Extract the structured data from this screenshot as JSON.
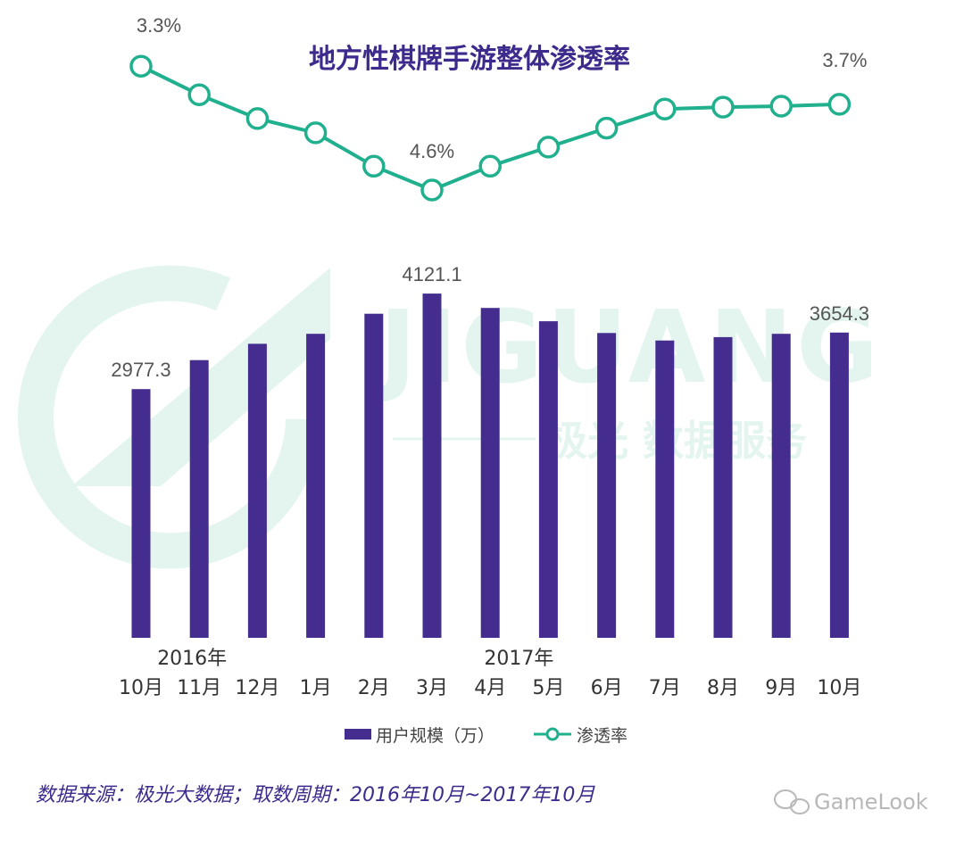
{
  "chart_data": {
    "type": "bar+line",
    "title": "地方性棋牌手游整体渗透率",
    "categories": [
      "10月",
      "11月",
      "12月",
      "1月",
      "2月",
      "3月",
      "4月",
      "5月",
      "6月",
      "7月",
      "8月",
      "9月",
      "10月"
    ],
    "year_labels": [
      {
        "text": "2016年",
        "category_index": 1
      },
      {
        "text": "2017年",
        "category_index": 7
      }
    ],
    "series": [
      {
        "name": "用户规模（万）",
        "type": "bar",
        "color": "#452d8f",
        "values": [
          2977.3,
          3325,
          3520,
          3640,
          3880,
          4121.1,
          3950,
          3790,
          3650,
          3560,
          3600,
          3640,
          3654.3
        ]
      },
      {
        "name": "渗透率",
        "type": "line",
        "color": "#20b08e",
        "unit": "%",
        "values": [
          3.3,
          3.6,
          3.85,
          4.0,
          4.35,
          4.6,
          4.35,
          4.15,
          3.95,
          3.75,
          3.73,
          3.72,
          3.7
        ]
      }
    ],
    "bar_labels": [
      {
        "index": 0,
        "text": "2977.3"
      },
      {
        "index": 5,
        "text": "4121.1"
      },
      {
        "index": 12,
        "text": "3654.3"
      }
    ],
    "line_labels": [
      {
        "index": 0,
        "text": "3.3%"
      },
      {
        "index": 5,
        "text": "4.6%"
      },
      {
        "index": 12,
        "text": "3.7%"
      }
    ],
    "legend_position": "bottom-center",
    "grid": false
  },
  "watermark": {
    "brand": "JIGUANG",
    "subtitle": "极光 数据服务"
  },
  "footer": {
    "source": "数据来源：极光大数据；取数周期：2016年10月~2017年10月",
    "brand": "GameLook",
    "brand_icon": "wechat-icon"
  }
}
